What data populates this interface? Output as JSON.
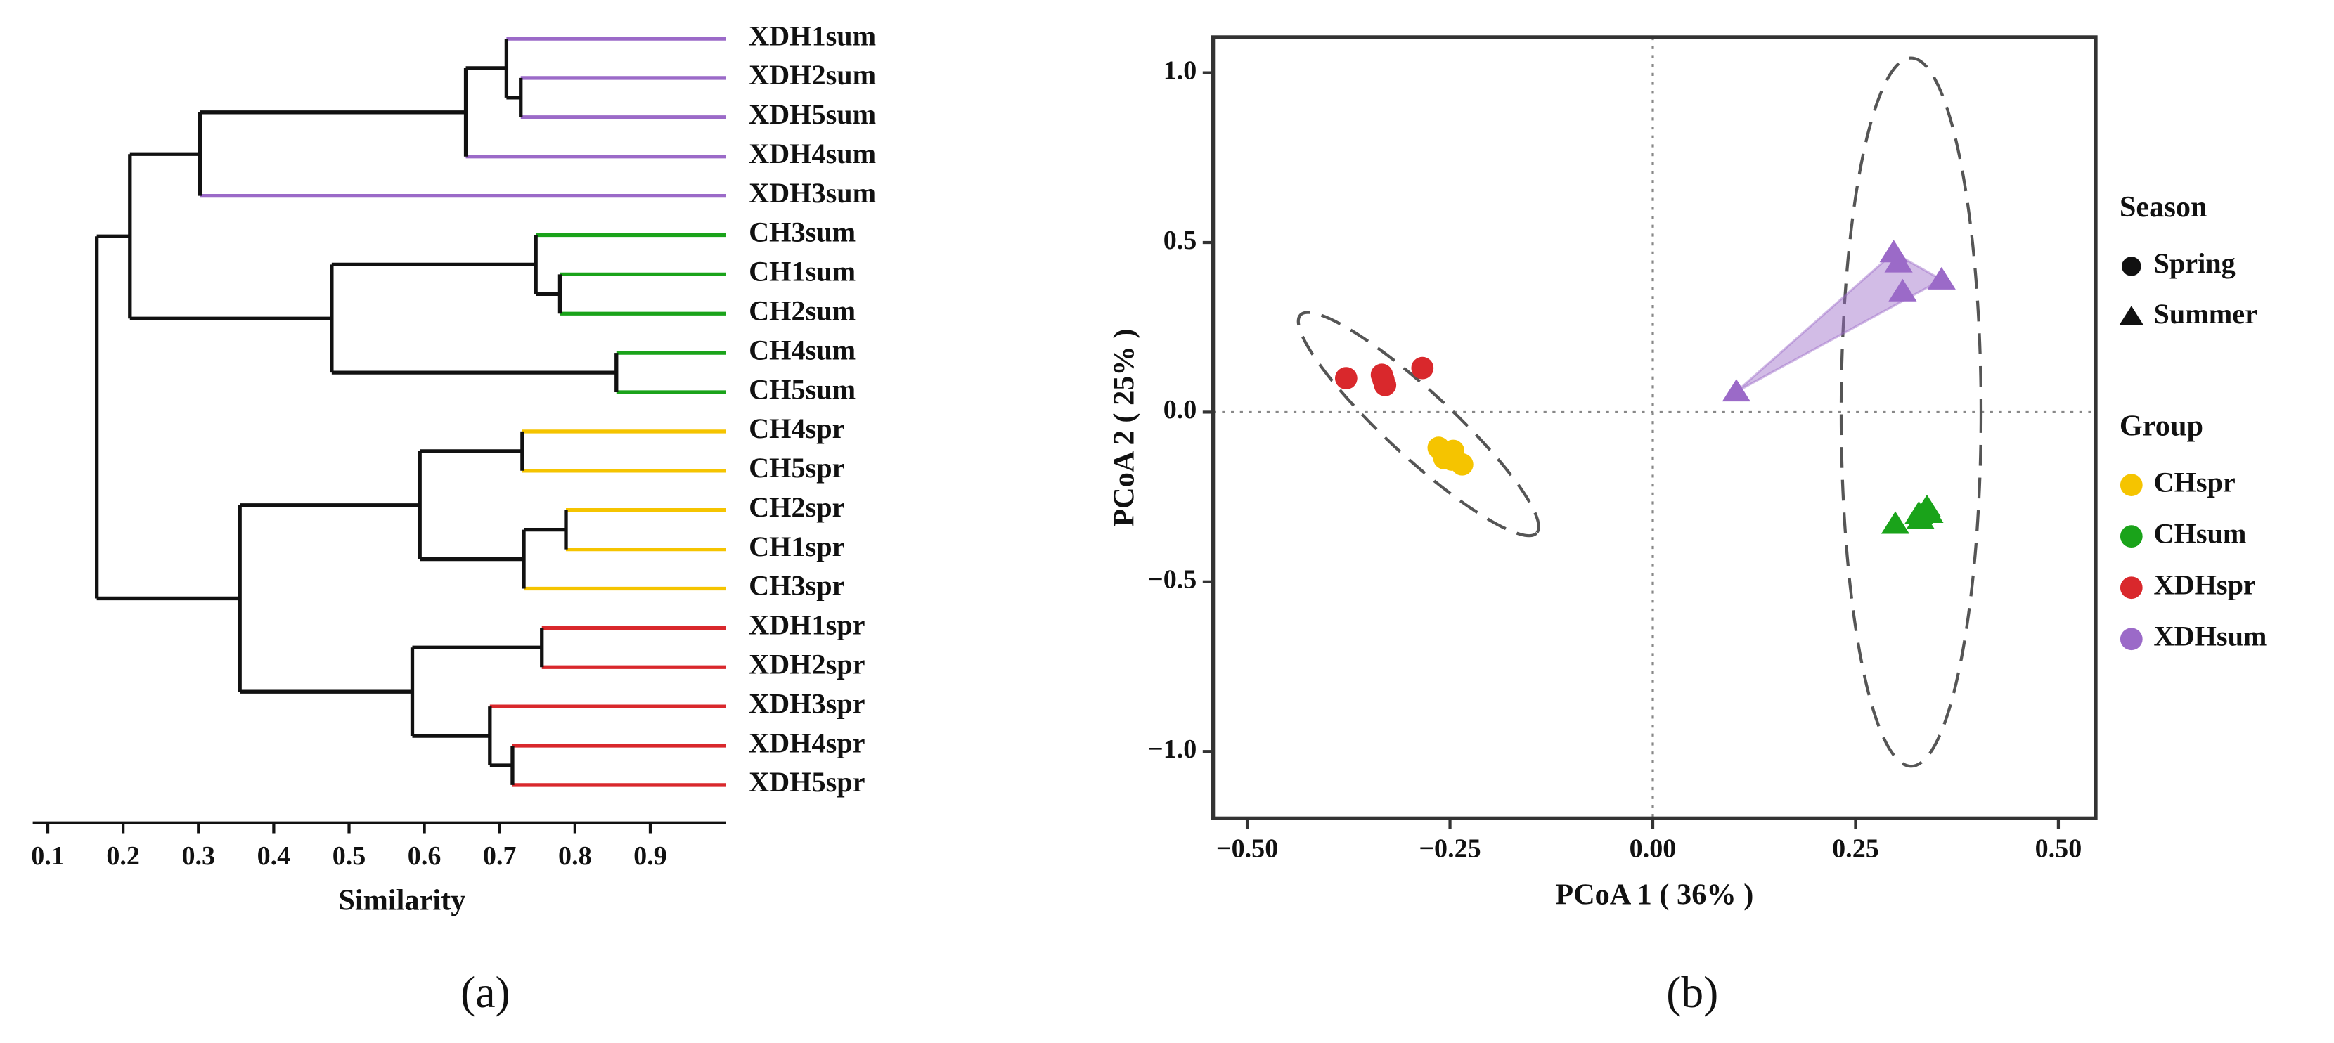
{
  "chart_data": [
    {
      "type": "dendrogram",
      "label": "(a)",
      "x_label": "Similarity",
      "xlim": [
        0.08,
        1.0
      ],
      "xticks": [
        0.1,
        0.2,
        0.3,
        0.4,
        0.5,
        0.6,
        0.7,
        0.8,
        0.9
      ],
      "leaves": [
        {
          "label": "XDH1sum",
          "color": "#9b6ac8"
        },
        {
          "label": "XDH2sum",
          "color": "#9b6ac8"
        },
        {
          "label": "XDH5sum",
          "color": "#9b6ac8"
        },
        {
          "label": "XDH4sum",
          "color": "#9b6ac8"
        },
        {
          "label": "XDH3sum",
          "color": "#9b6ac8"
        },
        {
          "label": "CH3sum",
          "color": "#1aa31a"
        },
        {
          "label": "CH1sum",
          "color": "#1aa31a"
        },
        {
          "label": "CH2sum",
          "color": "#1aa31a"
        },
        {
          "label": "CH4sum",
          "color": "#1aa31a"
        },
        {
          "label": "CH5sum",
          "color": "#1aa31a"
        },
        {
          "label": "CH4spr",
          "color": "#f5c400"
        },
        {
          "label": "CH5spr",
          "color": "#f5c400"
        },
        {
          "label": "CH2spr",
          "color": "#f5c400"
        },
        {
          "label": "CH1spr",
          "color": "#f5c400"
        },
        {
          "label": "CH3spr",
          "color": "#f5c400"
        },
        {
          "label": "XDH1spr",
          "color": "#d9282c"
        },
        {
          "label": "XDH2spr",
          "color": "#d9282c"
        },
        {
          "label": "XDH3spr",
          "color": "#d9282c"
        },
        {
          "label": "XDH4spr",
          "color": "#d9282c"
        },
        {
          "label": "XDH5spr",
          "color": "#d9282c"
        }
      ],
      "merges": [
        {
          "left": 1,
          "right": 2,
          "height": 0.728
        },
        {
          "left": 0,
          "right": 20,
          "height": 0.709
        },
        {
          "left": 21,
          "right": 3,
          "height": 0.655
        },
        {
          "left": 22,
          "right": 4,
          "height": 0.302
        },
        {
          "left": 6,
          "right": 7,
          "height": 0.78
        },
        {
          "left": 5,
          "right": 24,
          "height": 0.748
        },
        {
          "left": 8,
          "right": 9,
          "height": 0.855
        },
        {
          "left": 25,
          "right": 26,
          "height": 0.477
        },
        {
          "left": 23,
          "right": 27,
          "height": 0.209
        },
        {
          "left": 10,
          "right": 11,
          "height": 0.73
        },
        {
          "left": 12,
          "right": 13,
          "height": 0.788
        },
        {
          "left": 30,
          "right": 14,
          "height": 0.732
        },
        {
          "left": 29,
          "right": 31,
          "height": 0.594
        },
        {
          "left": 15,
          "right": 16,
          "height": 0.756
        },
        {
          "left": 18,
          "right": 19,
          "height": 0.717
        },
        {
          "left": 17,
          "right": 34,
          "height": 0.687
        },
        {
          "left": 33,
          "right": 35,
          "height": 0.584
        },
        {
          "left": 32,
          "right": 36,
          "height": 0.355
        },
        {
          "left": 28,
          "right": 37,
          "height": 0.165
        }
      ]
    },
    {
      "type": "scatter",
      "label": "(b)",
      "x_label": "PCoA 1 ( 36% )",
      "y_label": "PCoA 2 ( 25% )",
      "xlim": [
        -0.542,
        0.546
      ],
      "ylim": [
        -1.197,
        1.105
      ],
      "xticks": [
        {
          "value": -0.5,
          "label": "−0.50"
        },
        {
          "value": -0.25,
          "label": "−0.25"
        },
        {
          "value": 0,
          "label": "0.00"
        },
        {
          "value": 0.25,
          "label": "0.25"
        },
        {
          "value": 0.5,
          "label": "0.50"
        }
      ],
      "yticks": [
        {
          "value": -1,
          "label": "−1.0"
        },
        {
          "value": -0.5,
          "label": "−0.5"
        },
        {
          "value": 0,
          "label": "0.0"
        },
        {
          "value": 0.5,
          "label": "0.5"
        },
        {
          "value": 1,
          "label": "1.0"
        }
      ],
      "zero_lines": true,
      "season_legend": {
        "title": "Season",
        "entries": [
          {
            "label": "Spring",
            "marker": "circle"
          },
          {
            "label": "Summer",
            "marker": "triangle"
          }
        ]
      },
      "group_legend_title": "Group",
      "series": [
        {
          "name": "CHspr",
          "color": "#f5c400",
          "marker": "circle",
          "hull": false,
          "x": [
            -0.264,
            -0.246,
            -0.248,
            -0.235,
            -0.257
          ],
          "y": [
            -0.105,
            -0.114,
            -0.14,
            -0.154,
            -0.136
          ]
        },
        {
          "name": "CHsum",
          "color": "#1aa31a",
          "marker": "triangle",
          "hull": false,
          "x": [
            0.299,
            0.33,
            0.338,
            0.341,
            0.328
          ],
          "y": [
            -0.33,
            -0.316,
            -0.281,
            -0.298,
            -0.3
          ]
        },
        {
          "name": "XDHspr",
          "color": "#d9282c",
          "marker": "circle",
          "hull": false,
          "x": [
            -0.378,
            -0.334,
            -0.33,
            -0.284,
            -0.332
          ],
          "y": [
            0.1,
            0.11,
            0.08,
            0.13,
            0.095
          ]
        },
        {
          "name": "XDHsum",
          "color": "#9b6ac8",
          "marker": "triangle",
          "hull": true,
          "x": [
            0.103,
            0.297,
            0.303,
            0.308,
            0.356
          ],
          "y": [
            0.06,
            0.47,
            0.44,
            0.355,
            0.39
          ]
        }
      ]
    }
  ]
}
